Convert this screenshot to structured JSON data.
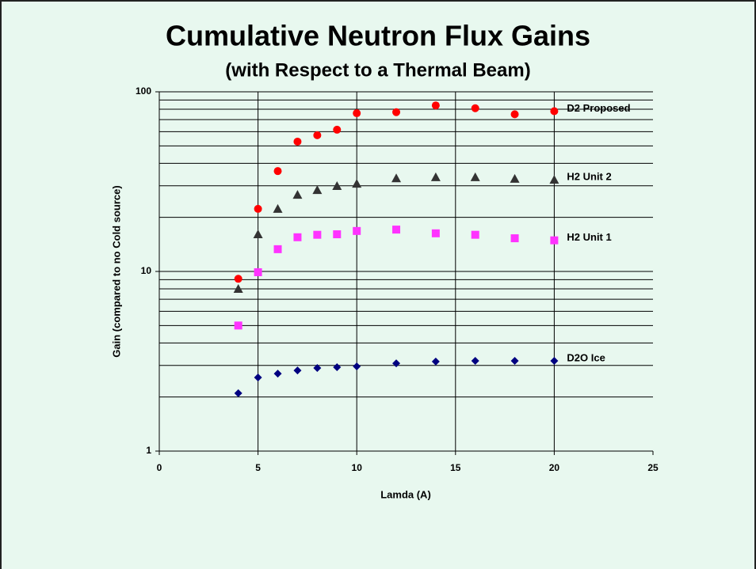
{
  "chart_data": {
    "type": "scatter",
    "title": "Cumulative Neutron Flux Gains",
    "subtitle": "(with Respect to a Thermal Beam)",
    "x_label": "Lamda (A)",
    "y_label": "Gain (compared to no Cold source)",
    "xlim": [
      0,
      25
    ],
    "xticks": [
      0,
      5,
      10,
      15,
      20,
      25
    ],
    "ylim": [
      1,
      100
    ],
    "yticks": [
      1,
      10,
      100
    ],
    "y_minor_ticks": [
      2,
      3,
      4,
      5,
      6,
      7,
      8,
      9,
      20,
      30,
      40,
      50,
      60,
      70,
      80,
      90
    ],
    "y_log": true,
    "grid": true,
    "x": [
      4,
      5,
      6,
      7,
      8,
      9,
      10,
      12,
      14,
      16,
      18,
      20
    ],
    "series": [
      {
        "name": "D2 Proposed",
        "color": "#ff0000",
        "marker": "circle",
        "values": [
          9.1,
          22.3,
          36.2,
          52.8,
          57.3,
          61.5,
          76,
          77,
          84,
          81,
          75,
          78
        ]
      },
      {
        "name": "H2 Unit 2",
        "color": "#333333",
        "marker": "triangle",
        "values": [
          8.0,
          16.1,
          22.3,
          26.7,
          28.4,
          29.9,
          30.8,
          33,
          33.5,
          33.5,
          32.8,
          32.4
        ]
      },
      {
        "name": "H2 Unit 1",
        "color": "#ff33ff",
        "marker": "square",
        "values": [
          5.0,
          9.9,
          13.3,
          15.5,
          16.0,
          16.1,
          16.8,
          17.1,
          16.3,
          16.0,
          15.3,
          14.9
        ]
      },
      {
        "name": "D2O Ice",
        "color": "#000080",
        "marker": "diamond",
        "values": [
          2.1,
          2.57,
          2.7,
          2.81,
          2.9,
          2.93,
          2.96,
          3.08,
          3.15,
          3.18,
          3.18,
          3.18
        ]
      }
    ]
  }
}
